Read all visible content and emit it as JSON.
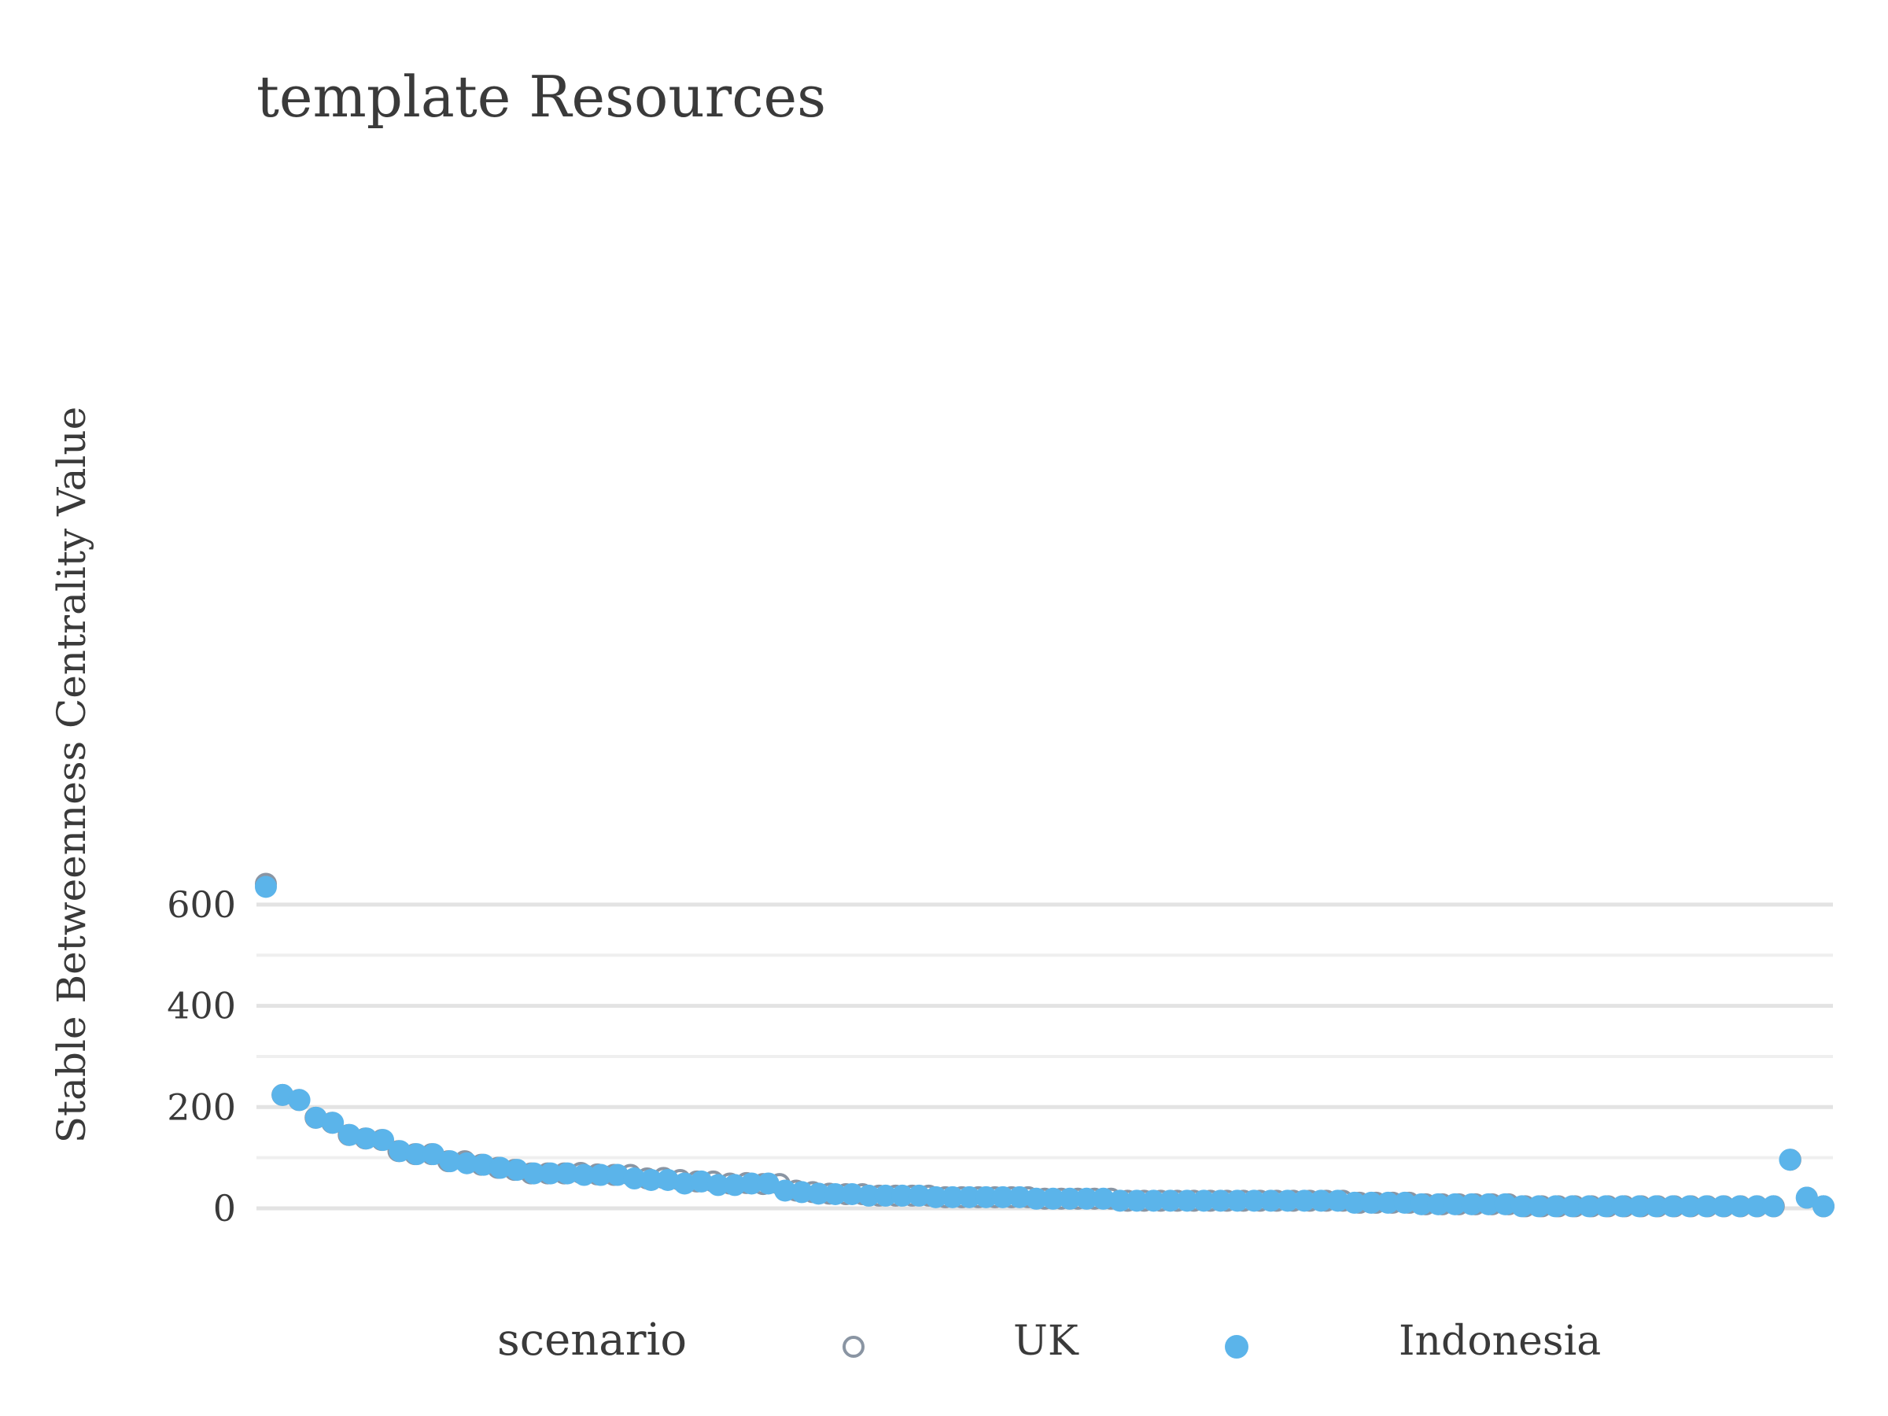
{
  "chart_data": {
    "type": "scatter",
    "title": "template Resources",
    "xlabel": "",
    "ylabel": "Stable Betweenness Centrality Value",
    "ylim": [
      -55,
      640
    ],
    "yticks": [
      0,
      200,
      400,
      600
    ],
    "grid": true,
    "legend": {
      "title": "scenario",
      "placement": "bottom"
    },
    "series": [
      {
        "name": "UK",
        "marker": "open-circle",
        "color": "#8a95a3",
        "values": [
          641,
          224,
          214,
          179,
          169,
          145,
          138,
          135,
          113,
          107,
          107,
          93,
          93,
          86,
          80,
          76,
          69,
          69,
          69,
          70,
          67,
          66,
          66,
          59,
          60,
          56,
          53,
          53,
          49,
          50,
          48,
          48,
          35,
          32,
          29,
          28,
          28,
          25,
          25,
          25,
          25,
          22,
          22,
          22,
          22,
          22,
          22,
          19,
          19,
          19,
          19,
          19,
          15,
          15,
          15,
          15,
          15,
          15,
          15,
          15,
          15,
          15,
          15,
          15,
          15,
          15,
          11,
          11,
          11,
          11,
          8,
          8,
          8,
          8,
          8,
          8,
          4,
          4,
          4,
          4,
          4,
          4,
          4,
          4,
          4,
          4,
          4,
          4,
          4,
          4,
          4,
          4,
          96,
          21,
          4
        ]
      },
      {
        "name": "Indonesia",
        "marker": "filled-circle",
        "color": "#5bb4ea",
        "values": [
          635,
          224,
          214,
          179,
          169,
          145,
          138,
          135,
          113,
          107,
          107,
          93,
          89,
          86,
          80,
          76,
          69,
          69,
          69,
          66,
          66,
          66,
          59,
          56,
          56,
          49,
          53,
          46,
          46,
          49,
          49,
          35,
          32,
          29,
          28,
          28,
          25,
          25,
          25,
          25,
          22,
          22,
          22,
          22,
          22,
          22,
          19,
          19,
          19,
          19,
          19,
          15,
          15,
          15,
          15,
          15,
          15,
          15,
          15,
          15,
          15,
          15,
          15,
          15,
          15,
          11,
          11,
          11,
          11,
          8,
          8,
          8,
          8,
          8,
          8,
          4,
          4,
          4,
          4,
          4,
          4,
          4,
          4,
          4,
          4,
          4,
          4,
          4,
          4,
          4,
          4,
          96,
          21,
          4
        ]
      }
    ]
  }
}
